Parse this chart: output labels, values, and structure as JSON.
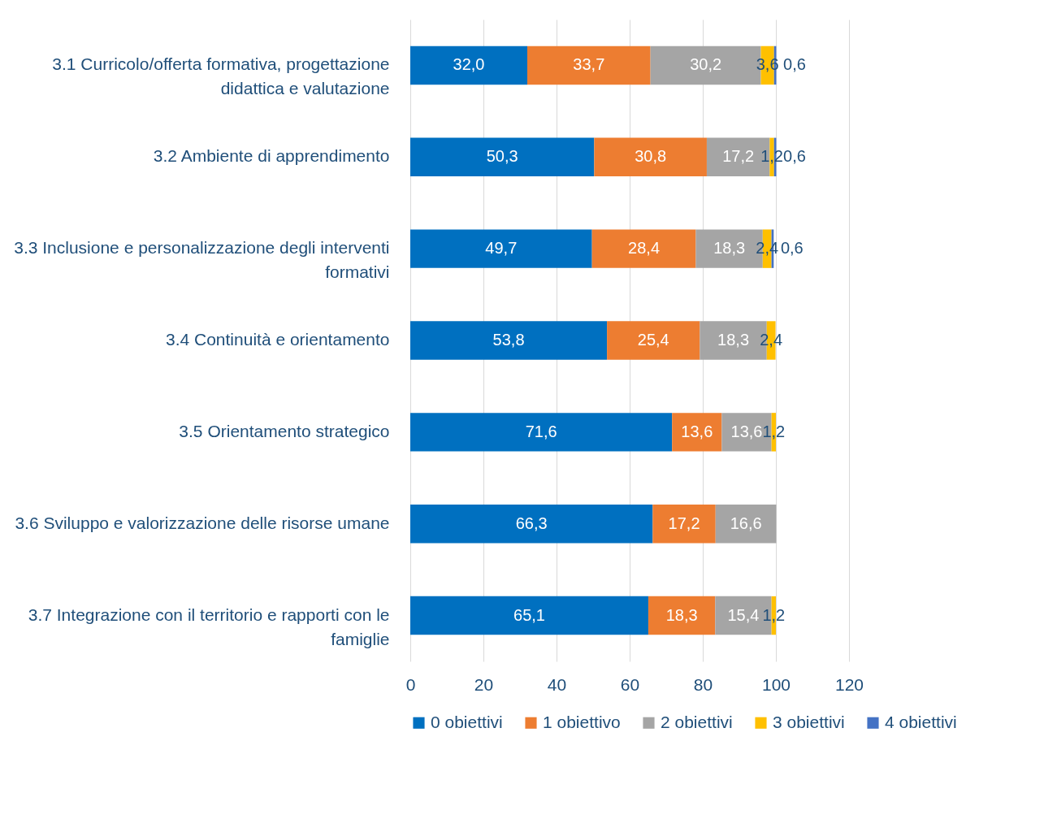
{
  "chart_data": {
    "type": "bar",
    "orientation": "horizontal",
    "stacked": true,
    "grid": "x",
    "legend": "bottom",
    "categories": [
      "3.1 Curricolo/offerta formativa, progettazione didattica e valutazione",
      "3.2 Ambiente di apprendimento",
      "3.3 Inclusione e personalizzazione degli interventi formativi",
      "3.4 Continuità e orientamento",
      "3.5 Orientamento strategico",
      "3.6 Sviluppo e valorizzazione delle risorse umane",
      "3.7 Integrazione con il territorio e rapporti con le famiglie"
    ],
    "xlim": [
      0,
      120
    ],
    "xticks": [
      0,
      20,
      40,
      60,
      80,
      100,
      120
    ],
    "series": [
      {
        "name": "0 obiettivi",
        "color": "#0070c0",
        "values": [
          32.0,
          50.3,
          49.7,
          53.8,
          71.6,
          66.3,
          65.1
        ],
        "value_labels": [
          "32,0",
          "50,3",
          "49,7",
          "53,8",
          "71,6",
          "66,3",
          "65,1"
        ]
      },
      {
        "name": "1 obiettivo",
        "color": "#ed7d31",
        "values": [
          33.7,
          30.8,
          28.4,
          25.4,
          13.6,
          17.2,
          18.3
        ],
        "value_labels": [
          "33,7",
          "30,8",
          "28,4",
          "25,4",
          "13,6",
          "17,2",
          "18,3"
        ]
      },
      {
        "name": "2 obiettivi",
        "color": "#a5a5a5",
        "values": [
          30.2,
          17.2,
          18.3,
          18.3,
          13.6,
          16.6,
          15.4
        ],
        "value_labels": [
          "30,2",
          "17,2",
          "18,3",
          "18,3",
          "13,6",
          "16,6",
          "15,4"
        ]
      },
      {
        "name": "3 obiettivi",
        "color": "#ffc000",
        "values": [
          3.6,
          1.2,
          2.4,
          2.4,
          1.2,
          null,
          1.2
        ],
        "value_labels": [
          "3,6",
          "1,2",
          "2,4",
          "2,4",
          "1,2",
          null,
          "1,2"
        ]
      },
      {
        "name": "4 obiettivi",
        "color": "#4472c4",
        "values": [
          0.6,
          0.6,
          0.6,
          null,
          null,
          null,
          null
        ],
        "value_labels": [
          "0,6",
          "0,6",
          "0,6",
          null,
          null,
          null,
          null
        ]
      }
    ]
  }
}
